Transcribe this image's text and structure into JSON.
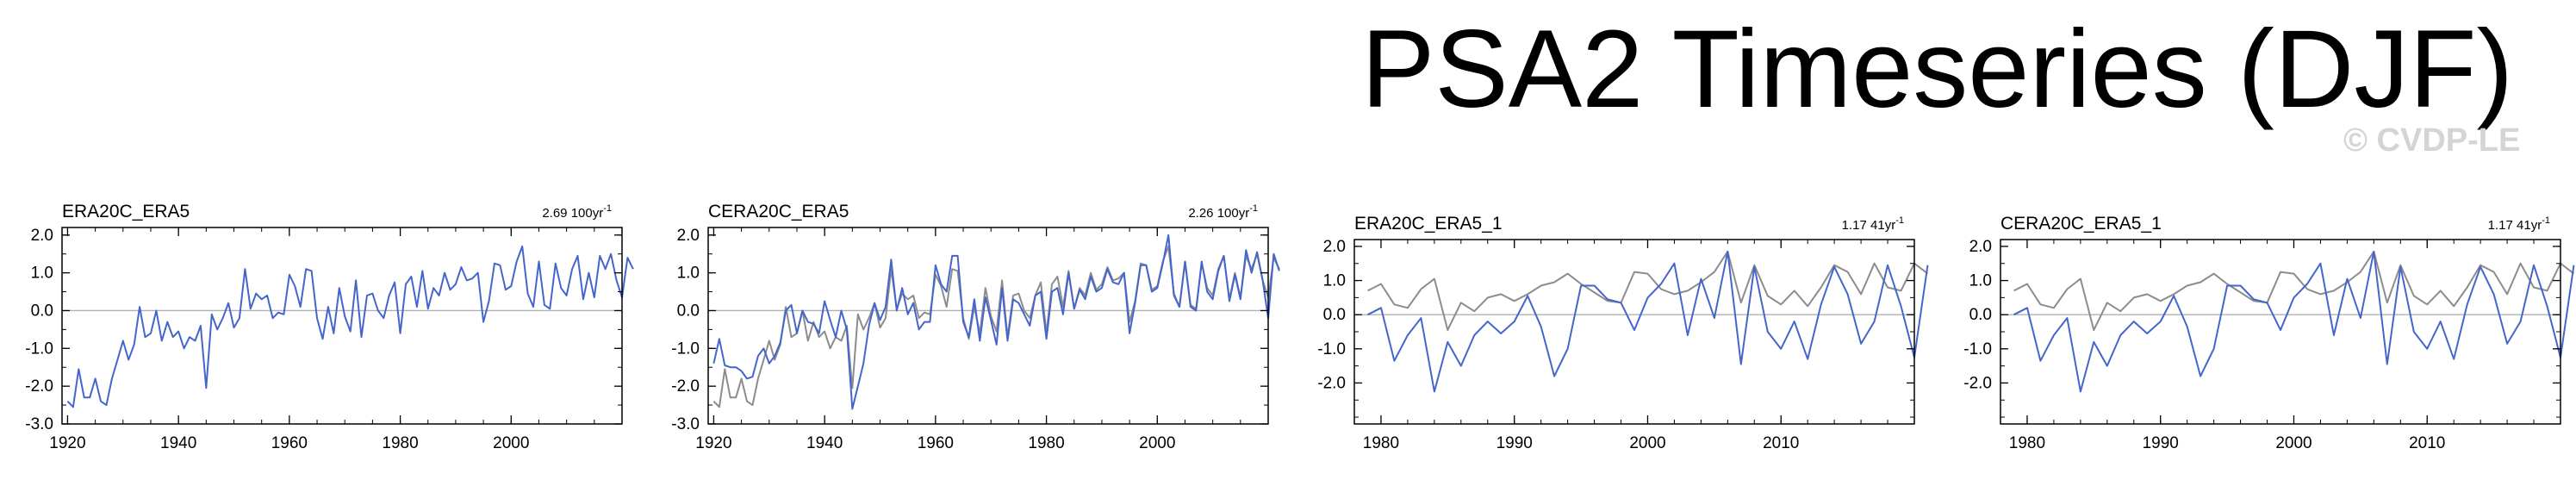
{
  "page": {
    "title": "PSA2 Timeseries (DJF)",
    "watermark": "© CVDP-LE"
  },
  "colors": {
    "primary": "#4466cc",
    "reference": "#8c8c8c",
    "zero": "#b0b0b0"
  },
  "chart_data": [
    {
      "type": "line",
      "title": "ERA20C_ERA5",
      "trend_value": "2.69",
      "trend_unit": "100yr",
      "trend_exp": "-1",
      "xlim": [
        1919,
        2020
      ],
      "ylim": [
        -3.0,
        2.2
      ],
      "xticks": [
        1920,
        1940,
        1960,
        1980,
        2000
      ],
      "yticks": [
        2.0,
        1.0,
        0.0,
        -1.0,
        -2.0,
        -3.0
      ],
      "ytick_labels": [
        "2.0",
        "1.0",
        "0.0",
        "-1.0",
        "-2.0",
        "-3.0"
      ],
      "x_start": 1920,
      "series": [
        {
          "name": "ERA20C_ERA5",
          "color": "#4466cc",
          "values": [
            -2.4,
            -2.55,
            -1.55,
            -2.3,
            -2.3,
            -1.8,
            -2.4,
            -2.5,
            -1.8,
            -1.3,
            -0.8,
            -1.3,
            -0.9,
            0.1,
            -0.7,
            -0.6,
            0.0,
            -0.8,
            -0.3,
            -0.7,
            -0.55,
            -1.0,
            -0.7,
            -0.8,
            -0.4,
            -2.05,
            -0.1,
            -0.5,
            -0.2,
            0.2,
            -0.45,
            -0.2,
            1.1,
            0.05,
            0.45,
            0.3,
            0.4,
            -0.2,
            -0.05,
            -0.1,
            0.95,
            0.65,
            0.1,
            1.1,
            1.05,
            -0.2,
            -0.75,
            0.1,
            -0.6,
            0.6,
            -0.15,
            -0.55,
            0.8,
            -0.7,
            0.4,
            0.45,
            0.0,
            -0.2,
            0.4,
            0.75,
            -0.6,
            0.7,
            0.9,
            0.1,
            1.05,
            0.05,
            0.6,
            0.4,
            1.0,
            0.55,
            0.7,
            1.15,
            0.8,
            0.85,
            1.0,
            -0.3,
            0.25,
            1.25,
            1.2,
            0.55,
            0.65,
            1.3,
            1.7,
            0.45,
            0.1,
            1.3,
            0.15,
            0.05,
            1.25,
            0.6,
            0.4,
            1.1,
            1.45,
            0.3,
            1.0,
            0.35,
            1.45,
            1.1,
            1.5,
            0.8,
            0.35,
            1.4,
            1.1
          ]
        }
      ]
    },
    {
      "type": "line",
      "title": "CERA20C_ERA5",
      "trend_value": "2.26",
      "trend_unit": "100yr",
      "trend_exp": "-1",
      "xlim": [
        1919,
        2020
      ],
      "ylim": [
        -3.0,
        2.2
      ],
      "xticks": [
        1920,
        1940,
        1960,
        1980,
        2000
      ],
      "yticks": [
        2.0,
        1.0,
        0.0,
        -1.0,
        -2.0,
        -3.0
      ],
      "ytick_labels": [
        "2.0",
        "1.0",
        "0.0",
        "-1.0",
        "-2.0",
        "-3.0"
      ],
      "x_start": 1920,
      "series": [
        {
          "name": "ERA20C_ERA5",
          "color": "#8c8c8c",
          "values": [
            -2.4,
            -2.55,
            -1.55,
            -2.3,
            -2.3,
            -1.8,
            -2.4,
            -2.5,
            -1.8,
            -1.3,
            -0.8,
            -1.3,
            -0.9,
            0.1,
            -0.7,
            -0.6,
            0.0,
            -0.8,
            -0.3,
            -0.7,
            -0.55,
            -1.0,
            -0.7,
            -0.8,
            -0.4,
            -2.05,
            -0.1,
            -0.5,
            -0.2,
            0.2,
            -0.45,
            -0.2,
            1.1,
            0.05,
            0.45,
            0.3,
            0.4,
            -0.2,
            -0.05,
            -0.1,
            0.95,
            0.65,
            0.1,
            1.1,
            1.05,
            -0.2,
            -0.75,
            0.1,
            -0.6,
            0.6,
            -0.15,
            -0.55,
            0.8,
            -0.7,
            0.4,
            0.45,
            0.0,
            -0.2,
            0.4,
            0.75,
            -0.6,
            0.7,
            0.9,
            0.1,
            1.05,
            0.05,
            0.6,
            0.4,
            1.0,
            0.55,
            0.7,
            1.15,
            0.8,
            0.85,
            1.0,
            -0.3,
            0.25,
            1.25,
            1.2,
            0.55,
            0.65,
            1.3,
            1.7,
            0.45,
            0.1,
            1.3,
            0.15,
            0.05,
            1.25,
            0.6,
            0.4,
            1.1,
            1.45,
            0.3,
            1.0,
            0.35,
            1.45,
            1.1,
            1.5,
            0.8,
            0.35,
            1.4,
            1.1
          ]
        },
        {
          "name": "CERA20C_ERA5",
          "color": "#4466cc",
          "values": [
            -1.4,
            -0.75,
            -1.45,
            -1.5,
            -1.5,
            -1.6,
            -1.8,
            -1.75,
            -1.2,
            -1.0,
            -1.4,
            -1.2,
            -0.85,
            0.0,
            0.15,
            -0.6,
            0.0,
            -0.3,
            -0.35,
            -0.6,
            0.25,
            -0.25,
            -0.7,
            0.0,
            -0.5,
            -2.6,
            -2.0,
            -1.4,
            -0.4,
            0.2,
            -0.25,
            0.1,
            1.35,
            0.0,
            0.6,
            -0.1,
            0.2,
            -0.5,
            -0.3,
            -0.3,
            1.2,
            0.7,
            0.5,
            1.45,
            1.45,
            -0.3,
            -0.7,
            0.3,
            -0.8,
            0.35,
            -0.25,
            -0.9,
            0.6,
            -0.8,
            0.3,
            0.2,
            -0.1,
            -0.4,
            0.4,
            0.5,
            -0.75,
            0.5,
            0.6,
            -0.1,
            1.0,
            0.05,
            0.55,
            0.3,
            0.9,
            0.5,
            0.6,
            1.1,
            0.75,
            0.7,
            1.0,
            -0.6,
            0.2,
            1.2,
            1.2,
            0.5,
            0.6,
            1.25,
            2.0,
            0.4,
            0.1,
            1.3,
            0.1,
            0.0,
            1.3,
            0.5,
            0.3,
            1.05,
            1.45,
            0.25,
            0.95,
            0.3,
            1.6,
            1.0,
            1.55,
            0.8,
            -0.2,
            1.5,
            1.05
          ]
        }
      ]
    },
    {
      "type": "line",
      "title": "ERA20C_ERA5_1",
      "trend_value": "1.17",
      "trend_unit": "41yr",
      "trend_exp": "-1",
      "xlim": [
        1978,
        2020
      ],
      "ylim": [
        -3.2,
        2.2
      ],
      "xticks": [
        1980,
        1990,
        2000,
        2010
      ],
      "yticks": [
        2.0,
        1.0,
        0.0,
        -1.0,
        -2.0
      ],
      "ytick_labels": [
        "2.0",
        "1.0",
        "0.0",
        "-1.0",
        "-2.0"
      ],
      "x_start": 1979,
      "series": [
        {
          "name": "ERA5",
          "color": "#8c8c8c",
          "values": [
            0.7,
            0.9,
            0.3,
            0.2,
            0.75,
            1.05,
            -0.45,
            0.35,
            0.1,
            0.5,
            0.6,
            0.4,
            0.6,
            0.85,
            0.95,
            1.2,
            0.9,
            0.65,
            0.4,
            0.35,
            1.25,
            1.2,
            0.75,
            0.6,
            0.7,
            0.95,
            1.25,
            1.85,
            0.35,
            1.45,
            0.55,
            0.3,
            0.7,
            0.25,
            0.8,
            1.45,
            1.25,
            0.6,
            1.5,
            0.8,
            0.7,
            1.5,
            1.2
          ]
        },
        {
          "name": "ERA20C_ERA5_1",
          "color": "#4466cc",
          "values": [
            0.0,
            0.2,
            -1.35,
            -0.6,
            -0.1,
            -2.25,
            -0.8,
            -1.5,
            -0.6,
            -0.2,
            -0.55,
            -0.2,
            0.55,
            -0.35,
            -1.8,
            -1.0,
            0.85,
            0.85,
            0.45,
            0.35,
            -0.45,
            0.5,
            0.9,
            1.5,
            -0.6,
            1.05,
            -0.1,
            1.85,
            -1.45,
            1.4,
            -0.5,
            -1.0,
            -0.2,
            -1.3,
            0.3,
            1.4,
            0.6,
            -0.85,
            -0.2,
            1.45,
            0.25,
            -1.25,
            1.45
          ]
        }
      ]
    },
    {
      "type": "line",
      "title": "CERA20C_ERA5_1",
      "trend_value": "1.17",
      "trend_unit": "41yr",
      "trend_exp": "-1",
      "xlim": [
        1978,
        2020
      ],
      "ylim": [
        -3.2,
        2.2
      ],
      "xticks": [
        1980,
        1990,
        2000,
        2010
      ],
      "yticks": [
        2.0,
        1.0,
        0.0,
        -1.0,
        -2.0
      ],
      "ytick_labels": [
        "2.0",
        "1.0",
        "0.0",
        "-1.0",
        "-2.0"
      ],
      "x_start": 1979,
      "series": [
        {
          "name": "ERA5",
          "color": "#8c8c8c",
          "values": [
            0.7,
            0.9,
            0.3,
            0.2,
            0.75,
            1.05,
            -0.45,
            0.35,
            0.1,
            0.5,
            0.6,
            0.4,
            0.6,
            0.85,
            0.95,
            1.2,
            0.9,
            0.65,
            0.4,
            0.35,
            1.25,
            1.2,
            0.75,
            0.6,
            0.7,
            0.95,
            1.25,
            1.85,
            0.35,
            1.45,
            0.55,
            0.3,
            0.7,
            0.25,
            0.8,
            1.45,
            1.25,
            0.6,
            1.5,
            0.8,
            0.7,
            1.5,
            1.2
          ]
        },
        {
          "name": "CERA20C_ERA5_1",
          "color": "#4466cc",
          "values": [
            0.0,
            0.2,
            -1.35,
            -0.6,
            -0.1,
            -2.25,
            -0.8,
            -1.5,
            -0.6,
            -0.2,
            -0.55,
            -0.2,
            0.55,
            -0.35,
            -1.8,
            -1.0,
            0.85,
            0.85,
            0.45,
            0.35,
            -0.45,
            0.5,
            0.9,
            1.5,
            -0.6,
            1.05,
            -0.1,
            1.85,
            -1.45,
            1.4,
            -0.5,
            -1.0,
            -0.2,
            -1.3,
            0.3,
            1.4,
            0.6,
            -0.85,
            -0.2,
            1.45,
            0.25,
            -1.25,
            1.45
          ]
        }
      ]
    }
  ]
}
